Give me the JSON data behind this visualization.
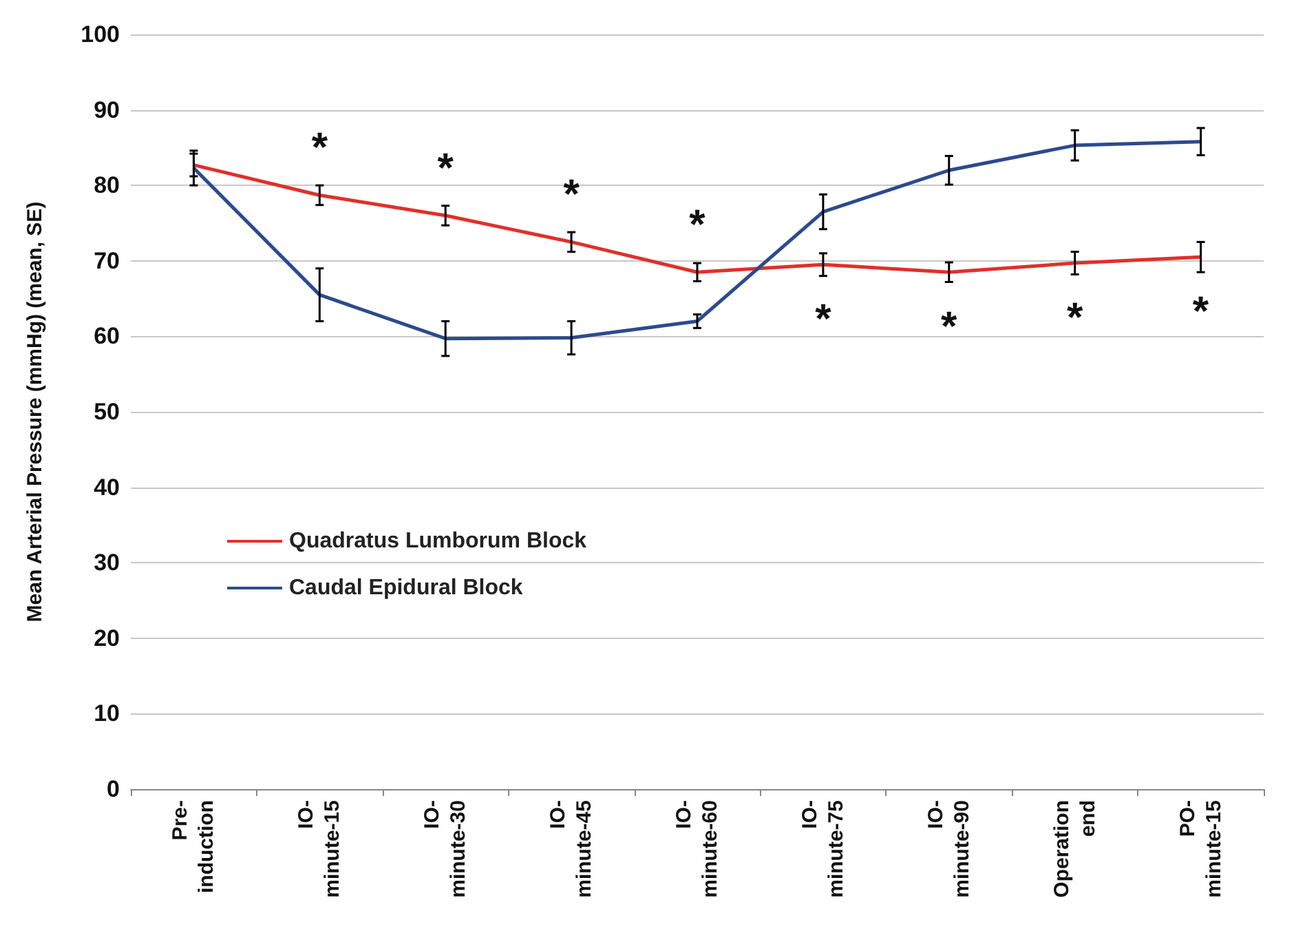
{
  "chart_data": {
    "type": "line",
    "ylabel": "Mean Arterial Pressure (mmHg) (mean, SE)",
    "categories": [
      "Pre-\ninduction",
      "IO-\nminute-15",
      "IO-\nminute-30",
      "IO-\nminute-45",
      "IO-\nminute-60",
      "IO-\nminute-75",
      "IO-\nminute-90",
      "Operation\nend",
      "PO-\nminute-15"
    ],
    "series": [
      {
        "name": "Quadratus Lumborum Block",
        "color": "#e0302a",
        "values": [
          82.7,
          78.7,
          76,
          72.5,
          68.5,
          69.5,
          68.5,
          69.7,
          70.5
        ],
        "errors": [
          1.5,
          1.3,
          1.3,
          1.3,
          1.2,
          1.5,
          1.3,
          1.5,
          2
        ]
      },
      {
        "name": "Caudal Epidural Block",
        "color": "#2c4a8e",
        "values": [
          82.3,
          65.5,
          59.7,
          59.8,
          62,
          76.5,
          82,
          85.3,
          85.8
        ],
        "errors": [
          2.3,
          3.5,
          2.3,
          2.2,
          0.9,
          2.3,
          1.9,
          2,
          1.8
        ]
      }
    ],
    "ylim": [
      0,
      100
    ],
    "yticks": [
      0,
      10,
      20,
      30,
      40,
      50,
      60,
      70,
      80,
      90,
      100
    ],
    "grid": "y",
    "legend": "left",
    "marker": "none",
    "line_style": "solid",
    "annotations": [
      {
        "text": "*",
        "x": "IO-\nminute-15",
        "y": 78.7
      },
      {
        "text": "*",
        "x": "IO-\nminute-30",
        "y": 76
      },
      {
        "text": "*",
        "x": "IO-\nminute-45",
        "y": 72.5
      },
      {
        "text": "*",
        "x": "IO-\nminute-60",
        "y": 68.5
      },
      {
        "text": "*",
        "x": "IO-\nminute-75",
        "y": 69.5
      },
      {
        "text": "*",
        "x": "IO-\nminute-90",
        "y": 68.5
      },
      {
        "text": "*",
        "x": "Operation\nend",
        "y": 69.7
      },
      {
        "text": "*",
        "x": "PO-\nminute-15",
        "y": 70.5
      }
    ]
  }
}
